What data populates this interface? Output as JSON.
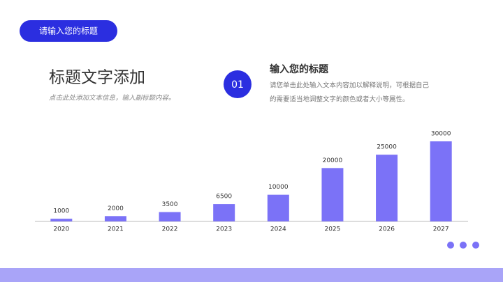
{
  "header": {
    "tag": "请输入您的标题",
    "title": "标题文字添加",
    "subtitle": "点击此处添加文本信息，输入副标题内容。"
  },
  "info": {
    "number": "01",
    "heading": "输入您的标题",
    "body": [
      "请您单击此处输入文本内容加以解释说明，可根据自己",
      "的需要适当地调整文字的颜色或者大小等属性。"
    ]
  },
  "chart_data": {
    "type": "bar",
    "categories": [
      "2020",
      "2021",
      "2022",
      "2023",
      "2024",
      "2025",
      "2026",
      "2027"
    ],
    "values": [
      1000,
      2000,
      3500,
      6500,
      10000,
      20000,
      25000,
      30000
    ],
    "color": "#7b72f7",
    "ylim": [
      0,
      30000
    ]
  }
}
